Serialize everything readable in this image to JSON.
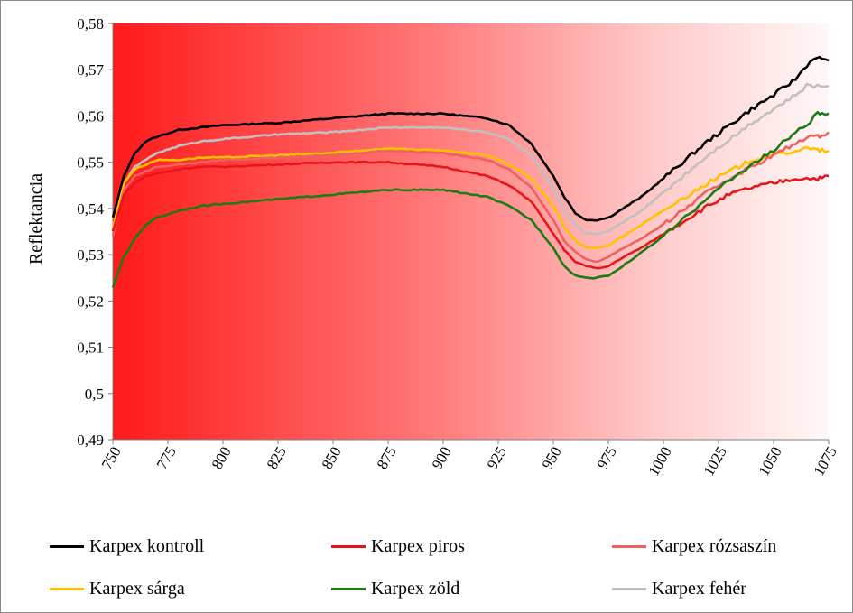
{
  "chart_data": {
    "type": "line",
    "title": "",
    "xlabel": "",
    "ylabel": "Reflektancia",
    "xlim": [
      750,
      1075
    ],
    "ylim": [
      0.49,
      0.58
    ],
    "x_ticks": [
      "750",
      "775",
      "800",
      "825",
      "850",
      "875",
      "900",
      "925",
      "950",
      "975",
      "1000",
      "1025",
      "1050",
      "1075"
    ],
    "y_ticks": [
      "0,49",
      "0,5",
      "0,51",
      "0,52",
      "0,53",
      "0,54",
      "0,55",
      "0,56",
      "0,57",
      "0,58"
    ],
    "grid": false,
    "background": "red-to-white horizontal gradient",
    "legend_position": "bottom",
    "x": [
      750,
      755,
      760,
      765,
      770,
      780,
      790,
      800,
      825,
      850,
      875,
      900,
      920,
      930,
      940,
      950,
      955,
      960,
      965,
      970,
      975,
      980,
      990,
      1000,
      1010,
      1020,
      1030,
      1040,
      1050,
      1060,
      1065,
      1070,
      1072,
      1075
    ],
    "series": [
      {
        "name": "Karpex kontroll",
        "color": "#000000",
        "values": [
          0.538,
          0.547,
          0.552,
          0.5545,
          0.5555,
          0.557,
          0.5575,
          0.558,
          0.5585,
          0.5595,
          0.5605,
          0.5605,
          0.5595,
          0.558,
          0.554,
          0.547,
          0.5425,
          0.539,
          0.5375,
          0.5375,
          0.538,
          0.5395,
          0.5425,
          0.5465,
          0.5505,
          0.5545,
          0.558,
          0.5615,
          0.5645,
          0.568,
          0.571,
          0.573,
          0.572,
          0.572
        ]
      },
      {
        "name": "Karpex piros",
        "color": "#e8151b",
        "values": [
          0.535,
          0.543,
          0.5455,
          0.547,
          0.5475,
          0.5485,
          0.549,
          0.549,
          0.5495,
          0.55,
          0.55,
          0.549,
          0.547,
          0.545,
          0.5415,
          0.5345,
          0.531,
          0.5285,
          0.5275,
          0.527,
          0.5275,
          0.529,
          0.5315,
          0.5345,
          0.5375,
          0.5405,
          0.543,
          0.5445,
          0.5455,
          0.5465,
          0.5465,
          0.5465,
          0.5465,
          0.547
        ]
      },
      {
        "name": "Karpex rózsaszín",
        "color": "#f06060",
        "values": [
          0.534,
          0.544,
          0.547,
          0.548,
          0.549,
          0.5495,
          0.55,
          0.5505,
          0.551,
          0.5515,
          0.5525,
          0.552,
          0.5505,
          0.5485,
          0.5445,
          0.5375,
          0.533,
          0.5305,
          0.529,
          0.5285,
          0.5295,
          0.531,
          0.5335,
          0.5365,
          0.54,
          0.5435,
          0.5465,
          0.549,
          0.5515,
          0.554,
          0.5555,
          0.5555,
          0.556,
          0.5565
        ]
      },
      {
        "name": "Karpex sárga",
        "color": "#ffc000",
        "values": [
          0.5355,
          0.5455,
          0.5485,
          0.5495,
          0.5505,
          0.5505,
          0.551,
          0.551,
          0.5515,
          0.552,
          0.553,
          0.5525,
          0.5515,
          0.5495,
          0.5465,
          0.5405,
          0.536,
          0.533,
          0.5315,
          0.5315,
          0.532,
          0.5335,
          0.5365,
          0.5395,
          0.5425,
          0.5455,
          0.548,
          0.5505,
          0.5515,
          0.5525,
          0.553,
          0.5525,
          0.5525,
          0.5525
        ]
      },
      {
        "name": "Karpex zöld",
        "color": "#1e7a12",
        "values": [
          0.523,
          0.5295,
          0.5335,
          0.5365,
          0.538,
          0.5395,
          0.5405,
          0.541,
          0.542,
          0.543,
          0.544,
          0.544,
          0.5425,
          0.5405,
          0.5375,
          0.5315,
          0.5275,
          0.5255,
          0.525,
          0.525,
          0.5255,
          0.527,
          0.5305,
          0.534,
          0.538,
          0.5425,
          0.546,
          0.5495,
          0.5525,
          0.5565,
          0.558,
          0.5605,
          0.5605,
          0.5605
        ]
      },
      {
        "name": "Karpex fehér",
        "color": "#c0c0c0",
        "values": [
          0.5345,
          0.5455,
          0.549,
          0.5505,
          0.552,
          0.5535,
          0.5545,
          0.555,
          0.556,
          0.5565,
          0.5575,
          0.5575,
          0.5565,
          0.555,
          0.5515,
          0.5445,
          0.5395,
          0.5365,
          0.5345,
          0.5345,
          0.535,
          0.5365,
          0.5395,
          0.5435,
          0.5475,
          0.5515,
          0.555,
          0.5585,
          0.5615,
          0.5645,
          0.5665,
          0.5665,
          0.5665,
          0.5665
        ]
      }
    ]
  }
}
